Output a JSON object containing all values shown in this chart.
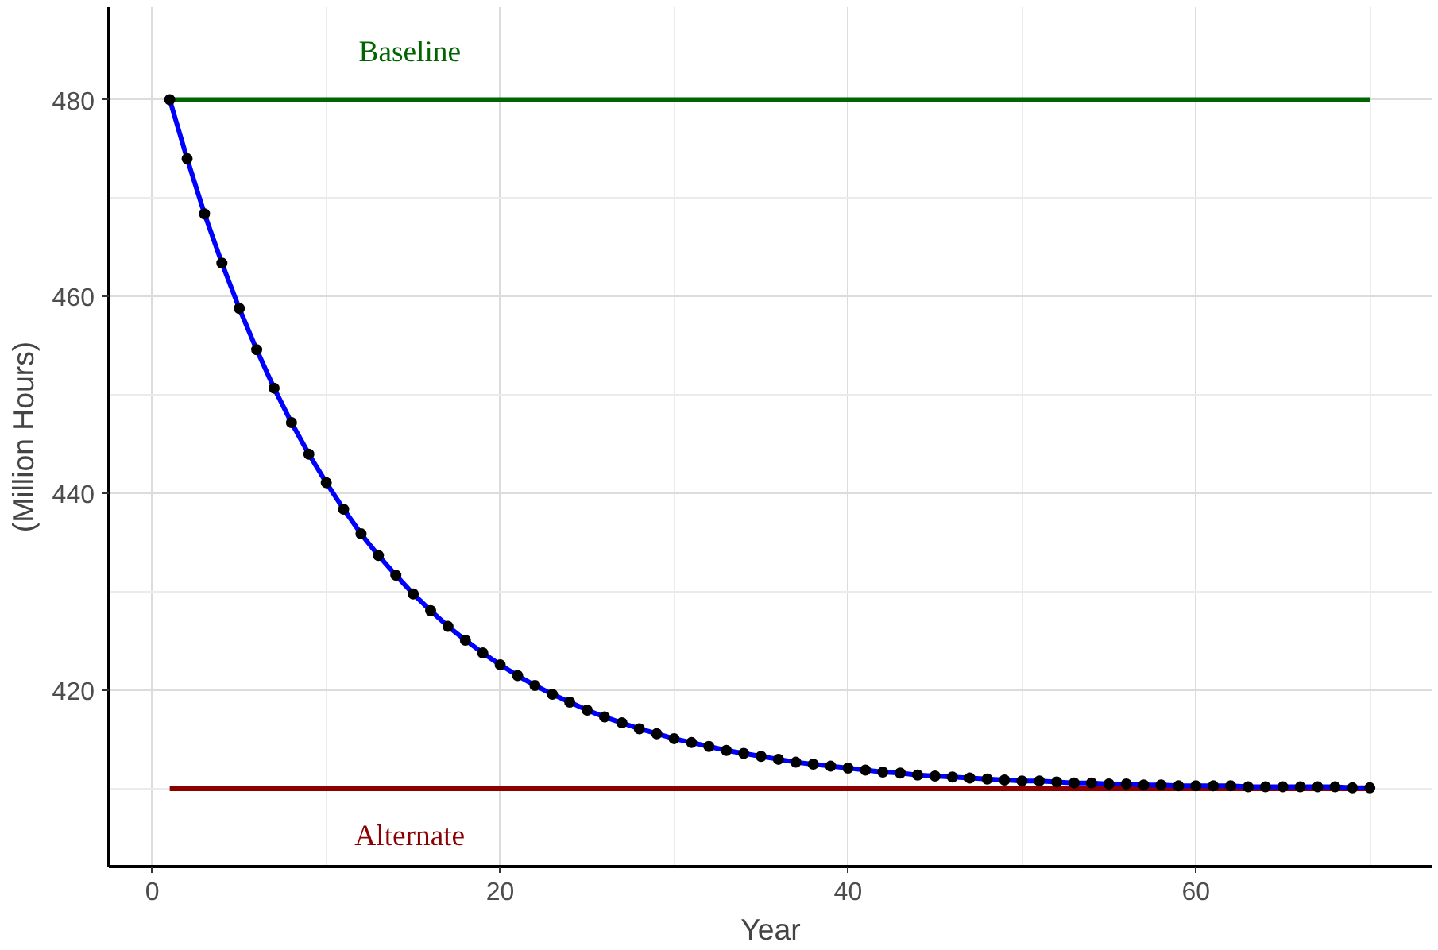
{
  "chart_data": {
    "type": "line",
    "xlabel": "Year",
    "ylabel": "(Million Hours)",
    "xlim": [
      -2.5,
      73.6
    ],
    "ylim": [
      402.1,
      489.4
    ],
    "xticks": [
      0,
      20,
      40,
      60
    ],
    "yticks": [
      420,
      440,
      460,
      480
    ],
    "grid": true,
    "series": [
      {
        "name": "Baseline",
        "color": "#006400",
        "x": [
          1,
          70
        ],
        "values": [
          480,
          480
        ]
      },
      {
        "name": "Alternate",
        "color": "#8b0000",
        "x": [
          1,
          70
        ],
        "values": [
          410,
          410
        ]
      },
      {
        "color": "#0000ff",
        "x": [
          1,
          2,
          3,
          4,
          5,
          6,
          7,
          8,
          9,
          10,
          11,
          12,
          13,
          14,
          15,
          16,
          17,
          18,
          19,
          20,
          21,
          22,
          23,
          24,
          25,
          26,
          27,
          28,
          29,
          30,
          31,
          32,
          33,
          34,
          35,
          36,
          37,
          38,
          39,
          40,
          41,
          42,
          43,
          44,
          45,
          46,
          47,
          48,
          49,
          50,
          51,
          52,
          53,
          54,
          55,
          56,
          57,
          58,
          59,
          60,
          61,
          62,
          63,
          64,
          65,
          66,
          67,
          68,
          69,
          70
        ],
        "values": [
          480,
          474.0,
          468.4,
          463.4,
          458.8,
          454.6,
          450.7,
          447.2,
          444.0,
          441.1,
          438.4,
          435.9,
          433.7,
          431.7,
          429.8,
          428.1,
          426.5,
          425.1,
          423.8,
          422.6,
          421.5,
          420.5,
          419.6,
          418.8,
          418.0,
          417.3,
          416.7,
          416.1,
          415.6,
          415.1,
          414.7,
          414.3,
          413.9,
          413.6,
          413.3,
          413.0,
          412.7,
          412.5,
          412.3,
          412.1,
          411.9,
          411.7,
          411.6,
          411.4,
          411.3,
          411.2,
          411.1,
          411.0,
          410.9,
          410.8,
          410.8,
          410.7,
          410.6,
          410.6,
          410.5,
          410.5,
          410.4,
          410.4,
          410.3,
          410.3,
          410.3,
          410.3,
          410.2,
          410.2,
          410.2,
          410.2,
          410.2,
          410.2,
          410.1,
          410.1
        ]
      },
      {
        "type": "scatter",
        "color": "#000000",
        "marker": "circle",
        "x": [
          1,
          2,
          3,
          4,
          5,
          6,
          7,
          8,
          9,
          10,
          11,
          12,
          13,
          14,
          15,
          16,
          17,
          18,
          19,
          20,
          21,
          22,
          23,
          24,
          25,
          26,
          27,
          28,
          29,
          30,
          31,
          32,
          33,
          34,
          35,
          36,
          37,
          38,
          39,
          40,
          41,
          42,
          43,
          44,
          45,
          46,
          47,
          48,
          49,
          50,
          51,
          52,
          53,
          54,
          55,
          56,
          57,
          58,
          59,
          60,
          61,
          62,
          63,
          64,
          65,
          66,
          67,
          68,
          69,
          70
        ],
        "values": [
          480,
          474.0,
          468.4,
          463.4,
          458.8,
          454.6,
          450.7,
          447.2,
          444.0,
          441.1,
          438.4,
          435.9,
          433.7,
          431.7,
          429.8,
          428.1,
          426.5,
          425.1,
          423.8,
          422.6,
          421.5,
          420.5,
          419.6,
          418.8,
          418.0,
          417.3,
          416.7,
          416.1,
          415.6,
          415.1,
          414.7,
          414.3,
          413.9,
          413.6,
          413.3,
          413.0,
          412.7,
          412.5,
          412.3,
          412.1,
          411.9,
          411.7,
          411.6,
          411.4,
          411.3,
          411.2,
          411.1,
          411.0,
          410.9,
          410.8,
          410.8,
          410.7,
          410.6,
          410.6,
          410.5,
          410.5,
          410.4,
          410.4,
          410.3,
          410.3,
          410.3,
          410.3,
          410.2,
          410.2,
          410.2,
          410.2,
          410.2,
          410.2,
          410.1,
          410.1
        ]
      }
    ]
  }
}
